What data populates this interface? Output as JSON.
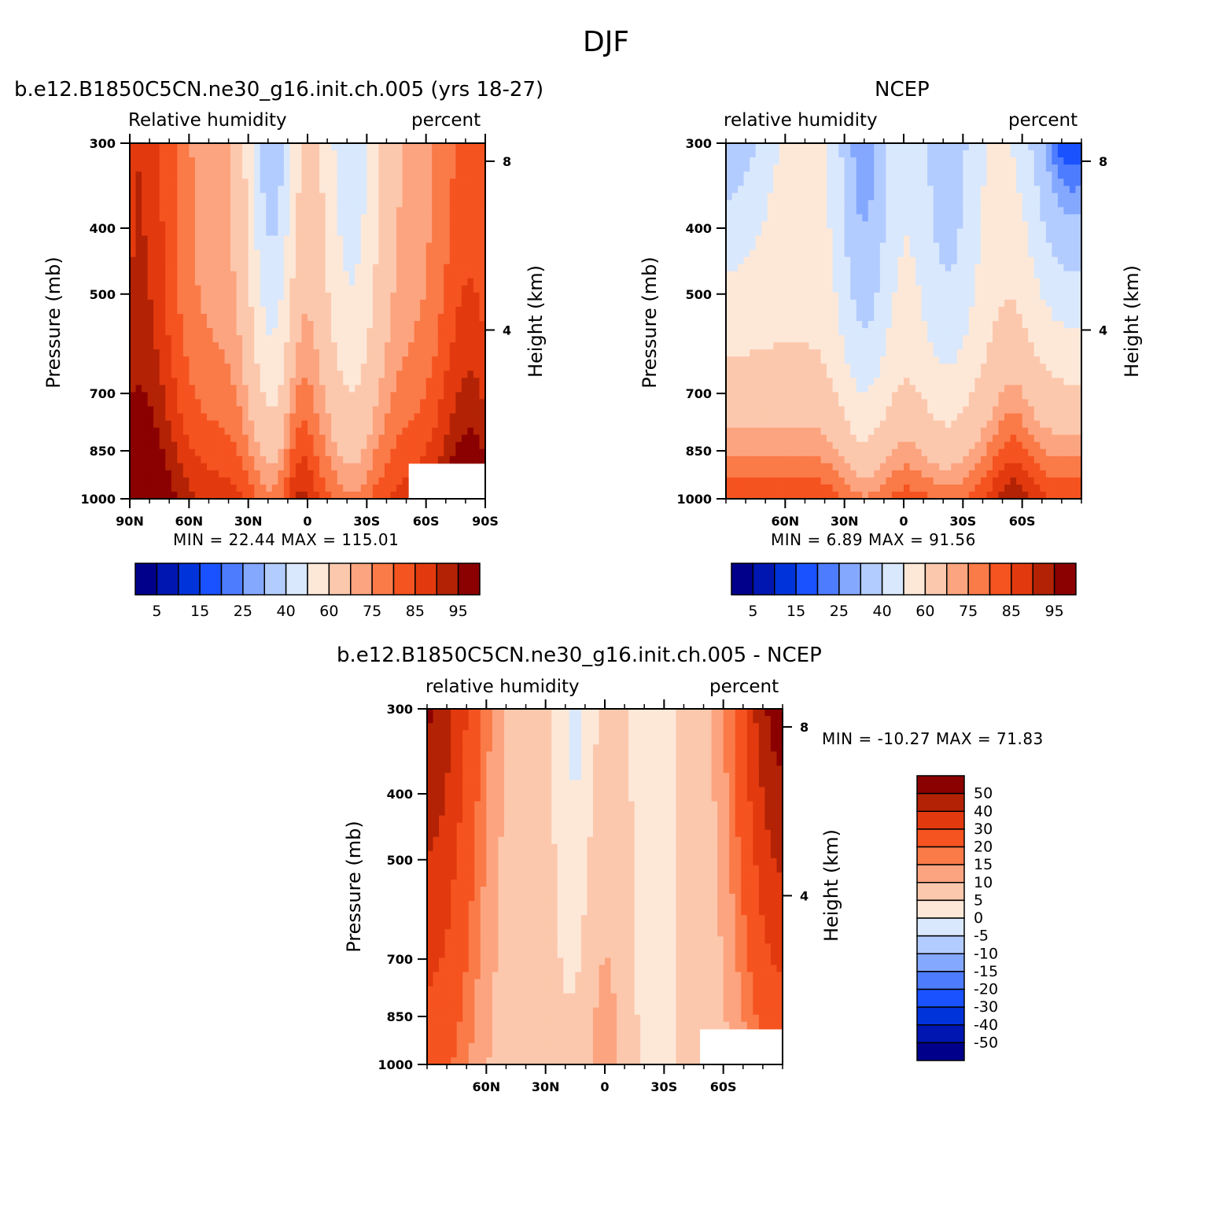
{
  "figure_title": "DJF",
  "chart_data": [
    {
      "type": "contour",
      "panel": "model",
      "title": "b.e12.B1850C5CN.ne30_g16.init.ch.005 (yrs 18-27)",
      "left_label": "Relative humidity",
      "right_label": "percent",
      "ylabel": "Pressure (mb)",
      "ylabel_right": "Height (km)",
      "x_ticks": [
        "90N",
        "60N",
        "30N",
        "0",
        "30S",
        "60S",
        "90S"
      ],
      "x_tick_values": [
        90,
        60,
        30,
        0,
        -30,
        -60,
        -90
      ],
      "y_ticks": [
        "300",
        "400",
        "500",
        "700",
        "850",
        "1000"
      ],
      "y_tick_values": [
        300,
        400,
        500,
        700,
        850,
        1000
      ],
      "right_ticks": [
        "8",
        "4"
      ],
      "right_tick_values": [
        8,
        4
      ],
      "xlim": [
        90,
        -90
      ],
      "ylim": [
        1000,
        300
      ],
      "stats_text": "MIN =   22.44   MAX = 115.01",
      "min": 22.44,
      "max": 115.01,
      "colorbar_labels": [
        "5",
        "15",
        "25",
        "40",
        "60",
        "75",
        "85",
        "95"
      ]
    },
    {
      "type": "contour",
      "panel": "obs",
      "title": "NCEP",
      "left_label": "relative humidity",
      "right_label": "percent",
      "ylabel": "Pressure (mb)",
      "ylabel_right": "Height (km)",
      "x_ticks": [
        "60N",
        "30N",
        "0",
        "30S",
        "60S"
      ],
      "x_tick_values": [
        60,
        30,
        0,
        -30,
        -60
      ],
      "y_ticks": [
        "300",
        "400",
        "500",
        "700",
        "850",
        "1000"
      ],
      "y_tick_values": [
        300,
        400,
        500,
        700,
        850,
        1000
      ],
      "right_ticks": [
        "8",
        "4"
      ],
      "right_tick_values": [
        8,
        4
      ],
      "xlim": [
        90,
        -90
      ],
      "ylim": [
        1000,
        300
      ],
      "stats_text": "MIN =     6.89   MAX =   91.56",
      "min": 6.89,
      "max": 91.56,
      "colorbar_labels": [
        "5",
        "15",
        "25",
        "40",
        "60",
        "75",
        "85",
        "95"
      ]
    },
    {
      "type": "contour",
      "panel": "diff",
      "title": "b.e12.B1850C5CN.ne30_g16.init.ch.005 - NCEP",
      "left_label": "relative humidity",
      "right_label": "percent",
      "ylabel": "Pressure (mb)",
      "ylabel_right": "Height (km)",
      "x_ticks": [
        "60N",
        "30N",
        "0",
        "30S",
        "60S"
      ],
      "x_tick_values": [
        60,
        30,
        0,
        -30,
        -60
      ],
      "y_ticks": [
        "300",
        "400",
        "500",
        "700",
        "850",
        "1000"
      ],
      "y_tick_values": [
        300,
        400,
        500,
        700,
        850,
        1000
      ],
      "right_ticks": [
        "8",
        "4"
      ],
      "right_tick_values": [
        8,
        4
      ],
      "xlim": [
        90,
        -90
      ],
      "ylim": [
        1000,
        300
      ],
      "stats_text": "MIN = -10.27   MAX =   71.83",
      "min": -10.27,
      "max": 71.83,
      "colorbar_labels": [
        "50",
        "40",
        "30",
        "20",
        "15",
        "10",
        "5",
        "0",
        "-5",
        "-10",
        "-15",
        "-20",
        "-30",
        "-40",
        "-50"
      ]
    }
  ],
  "palette": [
    "#00008b",
    "#0016b0",
    "#0033d9",
    "#1a52ff",
    "#4d7cff",
    "#85a8ff",
    "#b3ccff",
    "#d9e8fc",
    "#fde8d8",
    "#fcc8ad",
    "#fca47f",
    "#fa7a48",
    "#f5531f",
    "#e23a0e",
    "#b32205",
    "#8b0000"
  ]
}
